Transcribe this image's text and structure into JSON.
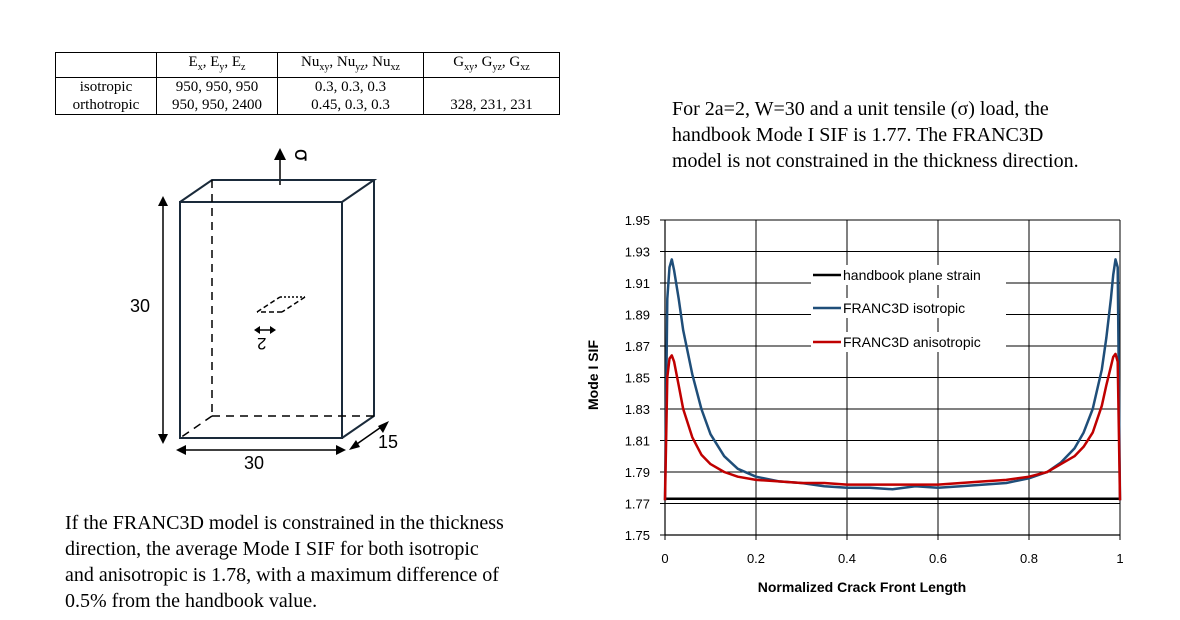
{
  "table": {
    "headers": [
      "",
      "Ex, Ey, Ez",
      "Nuxy, Nuyz, Nuxz",
      "Gxy, Gyz, Gxz"
    ],
    "rows": [
      [
        "isotropic",
        "950, 950, 950",
        "0.3, 0.3, 0.3",
        ""
      ],
      [
        "orthotropic",
        "950, 950, 2400",
        "0.45, 0.3, 0.3",
        "328, 231, 231"
      ]
    ]
  },
  "diagram": {
    "load_label": "σ",
    "height_label": "30",
    "width_label": "30",
    "depth_label": "15",
    "crack_label": "2"
  },
  "right_text": {
    "line1": "For 2a=2, W=30 and a unit tensile (σ) load, the",
    "line2": "handbook Mode I SIF is 1.77.  The FRANC3D",
    "line3": "model is not constrained in the thickness direction."
  },
  "bottom_text": {
    "line1": "If the FRANC3D model is constrained in the thickness",
    "line2": "direction, the average Mode I SIF for both isotropic",
    "line3": "and anisotropic is 1.78, with a maximum difference of",
    "line4": "0.5% from the handbook value."
  },
  "chart_data": {
    "type": "line",
    "title": "",
    "xlabel": "Normalized Crack Front Length",
    "ylabel": "Mode I SIF",
    "xlim": [
      0,
      1
    ],
    "ylim": [
      1.75,
      1.95
    ],
    "xticks": [
      "0",
      "0.2",
      "0.4",
      "0.6",
      "0.8",
      "1"
    ],
    "yticks": [
      "1.75",
      "1.77",
      "1.79",
      "1.81",
      "1.83",
      "1.85",
      "1.87",
      "1.89",
      "1.91",
      "1.93",
      "1.95"
    ],
    "grid": true,
    "legend_position": "upper-right",
    "series": [
      {
        "name": "handbook plane strain",
        "color": "#000000",
        "x": [
          0,
          1
        ],
        "y": [
          1.773,
          1.773
        ]
      },
      {
        "name": "FRANC3D isotropic",
        "color": "#1f4e79",
        "x": [
          0,
          0.005,
          0.01,
          0.015,
          0.02,
          0.03,
          0.04,
          0.06,
          0.08,
          0.1,
          0.13,
          0.16,
          0.2,
          0.25,
          0.3,
          0.35,
          0.4,
          0.45,
          0.5,
          0.55,
          0.6,
          0.65,
          0.7,
          0.75,
          0.8,
          0.84,
          0.87,
          0.9,
          0.92,
          0.94,
          0.96,
          0.97,
          0.98,
          0.985,
          0.99,
          0.995,
          1
        ],
        "y": [
          1.772,
          1.9,
          1.92,
          1.925,
          1.918,
          1.9,
          1.88,
          1.852,
          1.83,
          1.814,
          1.8,
          1.792,
          1.787,
          1.784,
          1.783,
          1.781,
          1.78,
          1.78,
          1.779,
          1.781,
          1.78,
          1.781,
          1.782,
          1.783,
          1.786,
          1.79,
          1.796,
          1.805,
          1.815,
          1.83,
          1.855,
          1.875,
          1.9,
          1.915,
          1.925,
          1.92,
          1.772
        ]
      },
      {
        "name": "FRANC3D anisotropic",
        "color": "#c00000",
        "x": [
          0,
          0.005,
          0.01,
          0.015,
          0.02,
          0.03,
          0.04,
          0.06,
          0.08,
          0.1,
          0.13,
          0.16,
          0.2,
          0.25,
          0.3,
          0.35,
          0.4,
          0.45,
          0.5,
          0.55,
          0.6,
          0.65,
          0.7,
          0.75,
          0.8,
          0.84,
          0.87,
          0.9,
          0.92,
          0.94,
          0.96,
          0.97,
          0.98,
          0.985,
          0.99,
          0.995,
          1
        ],
        "y": [
          1.772,
          1.85,
          1.862,
          1.864,
          1.86,
          1.845,
          1.83,
          1.812,
          1.801,
          1.795,
          1.79,
          1.787,
          1.785,
          1.784,
          1.783,
          1.783,
          1.782,
          1.782,
          1.782,
          1.782,
          1.782,
          1.783,
          1.784,
          1.785,
          1.787,
          1.79,
          1.795,
          1.8,
          1.806,
          1.815,
          1.832,
          1.845,
          1.857,
          1.863,
          1.865,
          1.86,
          1.772
        ]
      }
    ]
  }
}
